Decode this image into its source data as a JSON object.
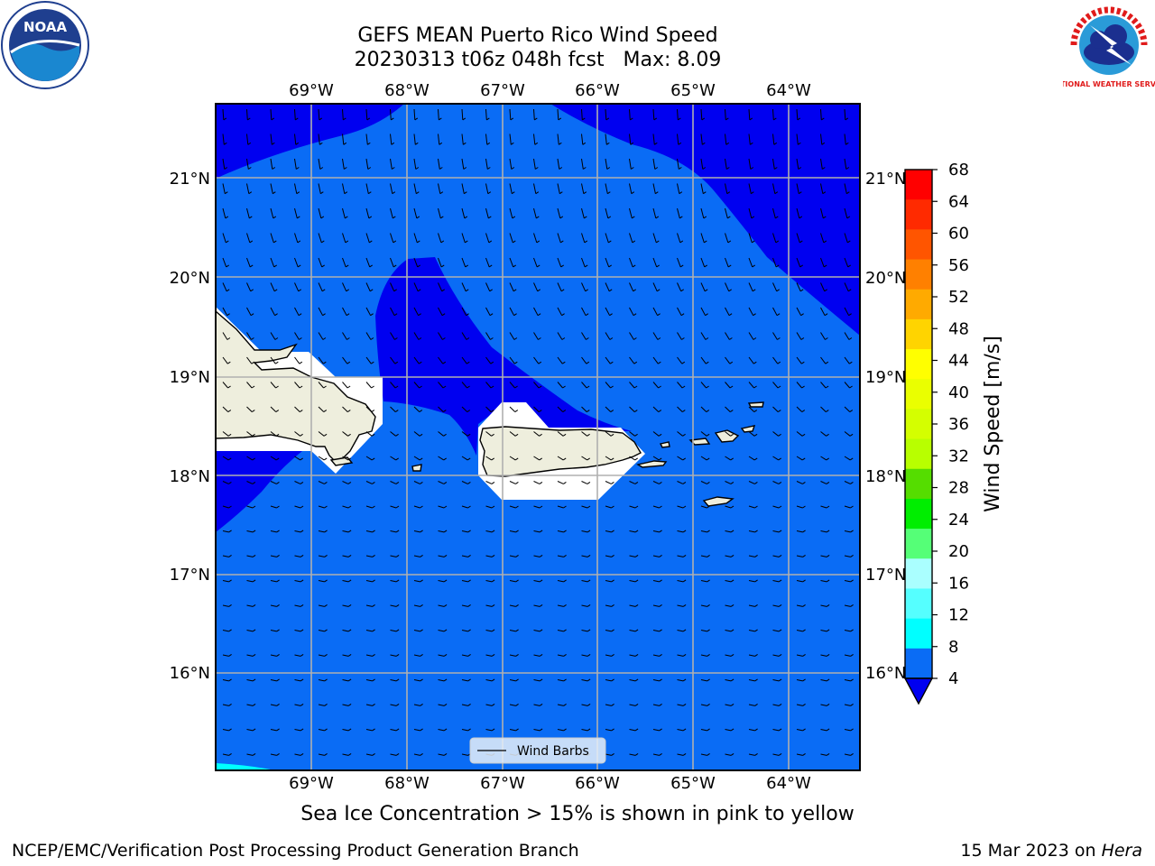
{
  "title": {
    "line1": "GEFS MEAN Puerto Rico Wind Speed",
    "line2": "20230313 t06z 048h fcst   Max: 8.09"
  },
  "map": {
    "lon_labels": [
      "69°W",
      "68°W",
      "67°W",
      "66°W",
      "65°W",
      "64°W"
    ],
    "lat_labels": [
      "21°N",
      "20°N",
      "19°N",
      "18°N",
      "17°N",
      "16°N"
    ],
    "legend_label": "Wind Barbs",
    "colors": {
      "speed_4_8": "#0a6cf5",
      "speed_below_4": "#0000f0",
      "speed_8_12": "#00ffff",
      "land": "#eeeedd",
      "grid": "#b0b0b0"
    }
  },
  "colorbar": {
    "label": "Wind Speed [m/s]",
    "ticks": [
      "68",
      "64",
      "60",
      "56",
      "52",
      "48",
      "44",
      "40",
      "36",
      "32",
      "28",
      "24",
      "20",
      "16",
      "12",
      "8",
      "4"
    ],
    "colors_top_to_bottom": [
      "#ff0000",
      "#ff2a00",
      "#ff5500",
      "#ff8000",
      "#ffaa00",
      "#ffd400",
      "#ffff00",
      "#eaff00",
      "#d4ff00",
      "#b8ff00",
      "#55dd00",
      "#00ee00",
      "#55ff77",
      "#aaffff",
      "#55ffff",
      "#00ffff",
      "#0a6cf5"
    ],
    "under_color": "#0000f0"
  },
  "note": "Sea Ice Concentration > 15% is shown in pink to yellow",
  "footer": {
    "left": "NCEP/EMC/Verification Post Processing Product Generation Branch",
    "date": "15 Mar 2023 on ",
    "machine": "Hera"
  },
  "logos": {
    "noaa_text": "NOAA",
    "nws_text": "NATIONAL WEATHER SERVICE"
  }
}
